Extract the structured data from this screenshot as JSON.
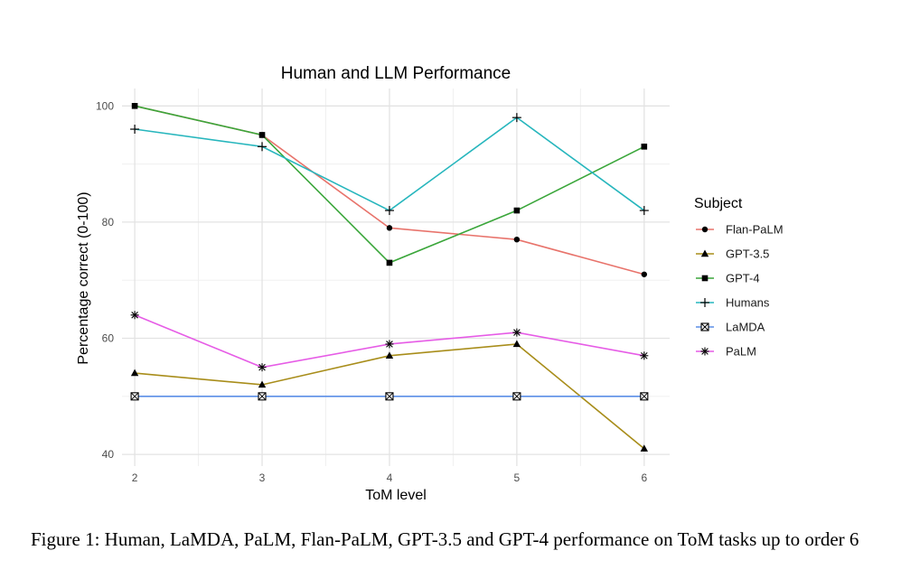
{
  "chart_data": {
    "type": "line",
    "title": "Human and LLM Performance",
    "xlabel": "ToM level",
    "ylabel": "Percentage correct (0-100)",
    "x": [
      2,
      3,
      4,
      5,
      6
    ],
    "xlim": [
      1.9,
      6.2
    ],
    "ylim": [
      38,
      103
    ],
    "yticks": [
      40,
      60,
      80,
      100
    ],
    "grid": true,
    "legend": {
      "title": "Subject",
      "position": "right"
    },
    "series": [
      {
        "name": "Flan-PaLM",
        "color": "#e8736b",
        "marker": "circle",
        "values": [
          100,
          95,
          79,
          77,
          71
        ]
      },
      {
        "name": "GPT-3.5",
        "color": "#a88d1a",
        "marker": "triangle",
        "values": [
          54,
          52,
          57,
          59,
          41
        ]
      },
      {
        "name": "GPT-4",
        "color": "#3aa63a",
        "marker": "square",
        "values": [
          100,
          95,
          73,
          82,
          93
        ]
      },
      {
        "name": "Humans",
        "color": "#27b6bd",
        "marker": "plus",
        "values": [
          96,
          93,
          82,
          98,
          82
        ]
      },
      {
        "name": "LaMDA",
        "color": "#5b8ee6",
        "marker": "boxx",
        "values": [
          50,
          50,
          50,
          50,
          50
        ]
      },
      {
        "name": "PaLM",
        "color": "#e65ce6",
        "marker": "asterisk",
        "values": [
          64,
          55,
          59,
          61,
          57
        ]
      }
    ]
  },
  "caption": "Figure 1: Human, LaMDA, PaLM, Flan-PaLM, GPT-3.5 and GPT-4 performance on ToM tasks up to order 6"
}
